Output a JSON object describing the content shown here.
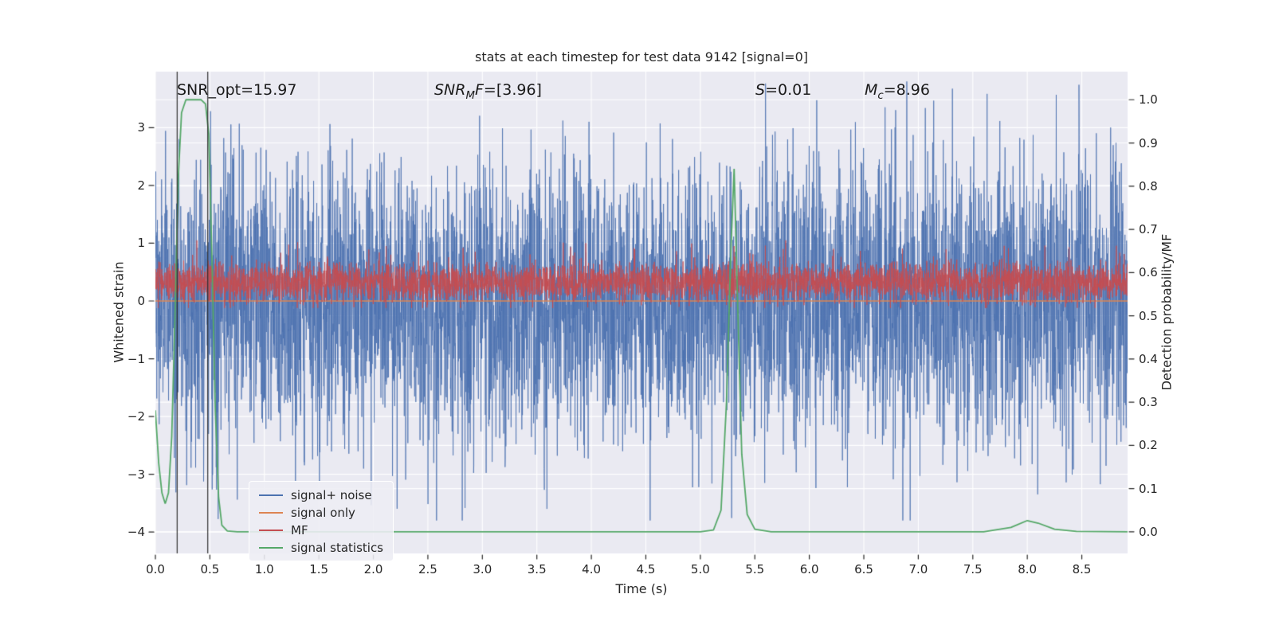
{
  "chart_data": {
    "type": "line",
    "title": "stats at each timestep for test data 9142 [signal=0]",
    "xlabel": "Time (s)",
    "ylabel_left": "Whitened strain",
    "ylabel_right": "Detection probability/MF",
    "x_range": [
      0,
      8.92
    ],
    "y_left_range": [
      -4.37,
      3.97
    ],
    "y_right_range": [
      -0.05,
      1.065
    ],
    "background": "#eaeaf2",
    "grid_color": "#ffffff",
    "grid": true,
    "legend_position": "lower left",
    "x_ticks": [
      {
        "v": 0.0,
        "label": "0.0"
      },
      {
        "v": 0.5,
        "label": "0.5"
      },
      {
        "v": 1.0,
        "label": "1.0"
      },
      {
        "v": 1.5,
        "label": "1.5"
      },
      {
        "v": 2.0,
        "label": "2.0"
      },
      {
        "v": 2.5,
        "label": "2.5"
      },
      {
        "v": 3.0,
        "label": "3.0"
      },
      {
        "v": 3.5,
        "label": "3.5"
      },
      {
        "v": 4.0,
        "label": "4.0"
      },
      {
        "v": 4.5,
        "label": "4.5"
      },
      {
        "v": 5.0,
        "label": "5.0"
      },
      {
        "v": 5.5,
        "label": "5.5"
      },
      {
        "v": 6.0,
        "label": "6.0"
      },
      {
        "v": 6.5,
        "label": "6.5"
      },
      {
        "v": 7.0,
        "label": "7.0"
      },
      {
        "v": 7.5,
        "label": "7.5"
      },
      {
        "v": 8.0,
        "label": "8.0"
      },
      {
        "v": 8.5,
        "label": "8.5"
      }
    ],
    "y_left_ticks": [
      {
        "v": 3,
        "label": "3"
      },
      {
        "v": 2,
        "label": "2"
      },
      {
        "v": 1,
        "label": "1"
      },
      {
        "v": 0,
        "label": "0"
      },
      {
        "v": -1,
        "label": "−1"
      },
      {
        "v": -2,
        "label": "−2"
      },
      {
        "v": -3,
        "label": "−3"
      },
      {
        "v": -4,
        "label": "−4"
      }
    ],
    "y_right_ticks": [
      {
        "v": 1.0,
        "label": "1.0"
      },
      {
        "v": 0.9,
        "label": "0.9"
      },
      {
        "v": 0.8,
        "label": "0.8"
      },
      {
        "v": 0.7,
        "label": "0.7"
      },
      {
        "v": 0.6,
        "label": "0.6"
      },
      {
        "v": 0.5,
        "label": "0.5"
      },
      {
        "v": 0.4,
        "label": "0.4"
      },
      {
        "v": 0.3,
        "label": "0.3"
      },
      {
        "v": 0.2,
        "label": "0.2"
      },
      {
        "v": 0.1,
        "label": "0.1"
      },
      {
        "v": 0.0,
        "label": "0.0"
      }
    ],
    "annotations": {
      "snr_opt": {
        "text": "SNR_opt=15.97"
      },
      "snr_mf": {
        "var": "SNR",
        "sub": "M",
        "var2": "F",
        "rest": "=[3.96]"
      },
      "s": {
        "var": "S",
        "rest": "=0.01"
      },
      "m_c": {
        "var": "M",
        "sub": "c",
        "rest": "=8.96"
      }
    },
    "vlines": {
      "x": [
        0.2,
        0.48
      ],
      "color": "#2e2e2e"
    },
    "series": [
      {
        "name": "signal+ noise",
        "color": "#4c72b0",
        "axis": "left",
        "kind": "noise",
        "mean": 0,
        "std": 1.2,
        "clip": 3.8,
        "n": 4880,
        "seed": 1234,
        "alpha": 0.8,
        "lw": 1
      },
      {
        "name": "signal only",
        "color": "#dd8452",
        "axis": "left",
        "kind": "constant",
        "value": 0,
        "alpha": 1,
        "lw": 1.5
      },
      {
        "name": "MF",
        "color": "#c44e52",
        "axis": "left",
        "kind": "noise",
        "mean": 0.33,
        "std": 0.17,
        "clip": [
          -0.12,
          1.05
        ],
        "n": 4880,
        "seed": 777,
        "alpha": 0.85,
        "lw": 1,
        "tail_from": 2.2,
        "tail_boost": 0.25
      },
      {
        "name": "signal statistics",
        "color": "#55a868",
        "axis": "right",
        "kind": "points",
        "lw": 1.8,
        "alpha": 1,
        "points": [
          [
            0.0,
            0.28
          ],
          [
            0.03,
            0.16
          ],
          [
            0.06,
            0.09
          ],
          [
            0.09,
            0.065
          ],
          [
            0.12,
            0.09
          ],
          [
            0.15,
            0.22
          ],
          [
            0.18,
            0.5
          ],
          [
            0.21,
            0.82
          ],
          [
            0.24,
            0.97
          ],
          [
            0.28,
            1.0
          ],
          [
            0.42,
            1.0
          ],
          [
            0.46,
            0.99
          ],
          [
            0.49,
            0.92
          ],
          [
            0.52,
            0.62
          ],
          [
            0.55,
            0.28
          ],
          [
            0.58,
            0.08
          ],
          [
            0.61,
            0.015
          ],
          [
            0.66,
            0.002
          ],
          [
            0.75,
            0.0
          ],
          [
            5.0,
            0.0
          ],
          [
            5.12,
            0.004
          ],
          [
            5.19,
            0.05
          ],
          [
            5.24,
            0.3
          ],
          [
            5.28,
            0.65
          ],
          [
            5.31,
            0.84
          ],
          [
            5.34,
            0.55
          ],
          [
            5.38,
            0.18
          ],
          [
            5.43,
            0.04
          ],
          [
            5.5,
            0.006
          ],
          [
            5.65,
            0.0
          ],
          [
            7.6,
            0.0
          ],
          [
            7.85,
            0.01
          ],
          [
            8.0,
            0.026
          ],
          [
            8.1,
            0.02
          ],
          [
            8.25,
            0.006
          ],
          [
            8.45,
            0.001
          ],
          [
            8.92,
            0.0
          ]
        ]
      }
    ],
    "legend": {
      "items": [
        {
          "label": "signal+ noise",
          "color": "#4c72b0"
        },
        {
          "label": "signal only",
          "color": "#dd8452"
        },
        {
          "label": "MF",
          "color": "#c44e52"
        },
        {
          "label": "signal statistics",
          "color": "#55a868"
        }
      ]
    }
  }
}
